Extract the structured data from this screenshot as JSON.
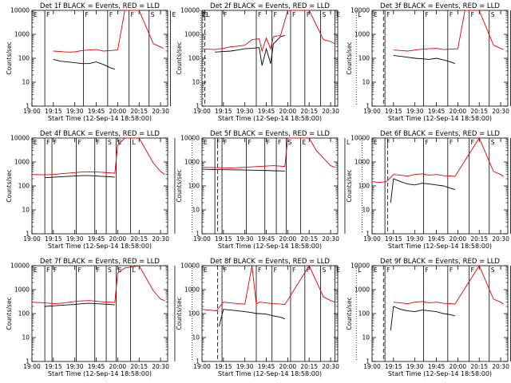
{
  "chart_data": [
    {
      "type": "line",
      "title": "Det 1f BLACK = Events, RED = LLD",
      "xlabel": "Start Time (12-Sep-14 18:58:00)",
      "ylabel": "Counts/sec",
      "yscale": "log",
      "ylim": [
        1,
        10000
      ],
      "xlim": [
        "19:00",
        "20:35"
      ],
      "x_ticks": [
        "19:00",
        "19:15",
        "19:30",
        "19:45",
        "20:00",
        "20:15",
        "20:30"
      ],
      "y_ticks": [
        "1",
        "10",
        "100",
        "1000",
        "10000"
      ],
      "region_labels": [
        "E",
        "F",
        "F",
        "F",
        "F",
        "S",
        "E",
        "E",
        "L"
      ],
      "series": [
        {
          "color": "#000000",
          "x": [
            "19:15",
            "19:20",
            "19:25",
            "19:30",
            "19:35",
            "19:40",
            "19:45",
            "19:50",
            "19:55",
            "19:58"
          ],
          "values": [
            90,
            75,
            70,
            65,
            60,
            60,
            70,
            55,
            40,
            35
          ]
        },
        {
          "color": "#e00000",
          "x": [
            "19:15",
            "19:20",
            "19:25",
            "19:30",
            "19:35",
            "19:40",
            "19:45",
            "19:50",
            "19:55",
            "20:00",
            "20:05",
            "20:15",
            "20:25",
            "20:30",
            "20:32"
          ],
          "values": [
            200,
            190,
            180,
            185,
            210,
            220,
            230,
            200,
            210,
            220,
            10000,
            10000,
            400,
            300,
            260
          ]
        }
      ]
    },
    {
      "type": "line",
      "title": "Det 2f BLACK = Events, RED = LLD",
      "xlabel": "Start Time (12-Sep-14 18:58:00)",
      "ylabel": "Counts/sec",
      "yscale": "log",
      "ylim": [
        1,
        10000
      ],
      "xlim": [
        "19:00",
        "20:35"
      ],
      "x_ticks": [
        "19:00",
        "19:15",
        "19:30",
        "19:45",
        "20:00",
        "20:15",
        "20:30"
      ],
      "y_ticks": [
        "1",
        "10",
        "100",
        "1000",
        "10000"
      ],
      "region_labels": [
        "E",
        "F",
        "F",
        "F",
        "F",
        "F",
        "S",
        "E",
        "L"
      ],
      "series": [
        {
          "color": "#000000",
          "x": [
            "19:09",
            "19:15",
            "19:20",
            "19:25",
            "19:30",
            "19:35",
            "19:40",
            "19:42",
            "19:45",
            "19:48",
            "19:50",
            "19:55",
            "19:58"
          ],
          "values": [
            180,
            190,
            200,
            220,
            250,
            260,
            280,
            50,
            250,
            60,
            400,
            800,
            900
          ]
        },
        {
          "color": "#e00000",
          "x": [
            "19:00",
            "19:09",
            "19:15",
            "19:20",
            "19:25",
            "19:30",
            "19:35",
            "19:40",
            "19:42",
            "19:45",
            "19:48",
            "19:50",
            "19:55",
            "20:00",
            "20:15",
            "20:25",
            "20:30",
            "20:33"
          ],
          "values": [
            250,
            230,
            260,
            300,
            320,
            350,
            600,
            650,
            200,
            700,
            250,
            800,
            900,
            10000,
            10000,
            600,
            500,
            400
          ]
        }
      ]
    },
    {
      "type": "line",
      "title": "Det 3f BLACK = Events, RED = LLD",
      "xlabel": "Start Time (12-Sep-14 18:58:00)",
      "ylabel": "Counts/sec",
      "yscale": "log",
      "ylim": [
        1,
        10000
      ],
      "xlim": [
        "19:00",
        "20:35"
      ],
      "x_ticks": [
        "19:00",
        "19:15",
        "19:30",
        "19:45",
        "20:00",
        "20:15",
        "20:30"
      ],
      "y_ticks": [
        "1",
        "10",
        "100",
        "1000",
        "10000"
      ],
      "region_labels": [
        "E",
        "F",
        "F",
        "F",
        "F",
        "S",
        "E",
        "E",
        "L"
      ],
      "series": [
        {
          "color": "#000000",
          "x": [
            "19:15",
            "19:20",
            "19:25",
            "19:30",
            "19:35",
            "19:40",
            "19:45",
            "19:50",
            "19:55",
            "19:58"
          ],
          "values": [
            130,
            120,
            110,
            100,
            95,
            90,
            100,
            85,
            70,
            60
          ]
        },
        {
          "color": "#e00000",
          "x": [
            "19:15",
            "19:20",
            "19:25",
            "19:30",
            "19:35",
            "19:40",
            "19:45",
            "19:50",
            "19:55",
            "20:00",
            "20:05",
            "20:15",
            "20:25",
            "20:30",
            "20:32"
          ],
          "values": [
            220,
            210,
            200,
            220,
            240,
            250,
            260,
            230,
            240,
            250,
            10000,
            10000,
            350,
            260,
            230
          ]
        }
      ]
    },
    {
      "type": "line",
      "title": "Det 4f BLACK = Events, RED = LLD",
      "xlabel": "Start Time (12-Sep-14 18:58:00)",
      "ylabel": "Counts/sec",
      "yscale": "log",
      "ylim": [
        1,
        10000
      ],
      "xlim": [
        "19:00",
        "20:35"
      ],
      "x_ticks": [
        "19:00",
        "19:15",
        "19:30",
        "19:45",
        "20:00",
        "20:15",
        "20:30"
      ],
      "y_ticks": [
        "1",
        "10",
        "100",
        "1000",
        "10000"
      ],
      "region_labels": [
        "E",
        "F",
        "F",
        "F",
        "F",
        "S",
        "E",
        "L"
      ],
      "series": [
        {
          "color": "#000000",
          "x": [
            "19:09",
            "19:15",
            "19:20",
            "19:25",
            "19:30",
            "19:35",
            "19:40",
            "19:45",
            "19:50",
            "19:55",
            "19:58"
          ],
          "values": [
            220,
            230,
            240,
            250,
            260,
            270,
            270,
            260,
            250,
            240,
            230
          ]
        },
        {
          "color": "#e00000",
          "x": [
            "19:00",
            "19:09",
            "19:15",
            "19:20",
            "19:25",
            "19:30",
            "19:35",
            "19:40",
            "19:45",
            "19:50",
            "19:55",
            "19:58",
            "20:00",
            "20:05",
            "20:15",
            "20:25",
            "20:30",
            "20:33"
          ],
          "values": [
            300,
            290,
            300,
            320,
            340,
            360,
            380,
            390,
            380,
            370,
            350,
            340,
            5000,
            10000,
            10000,
            900,
            400,
            300
          ]
        }
      ]
    },
    {
      "type": "line",
      "title": "Det 5f BLACK = Events, RED = LLD",
      "xlabel": "Start Time (12-Sep-14 18:58:00)",
      "ylabel": "Counts/sec",
      "yscale": "log",
      "ylim": [
        1,
        10000
      ],
      "xlim": [
        "19:00",
        "20:35"
      ],
      "x_ticks": [
        "19:00",
        "19:15",
        "19:30",
        "19:45",
        "20:00",
        "20:15",
        "20:30"
      ],
      "y_ticks": [
        "1",
        "10",
        "100",
        "1000",
        "10000"
      ],
      "region_labels": [
        "E",
        "F",
        "F",
        "F",
        "F",
        "F",
        "S",
        "E",
        "L"
      ],
      "series": [
        {
          "color": "#000000",
          "x": [
            "19:00",
            "19:10",
            "19:20",
            "19:30",
            "19:40",
            "19:50",
            "19:58"
          ],
          "values": [
            500,
            480,
            470,
            460,
            450,
            430,
            420
          ]
        },
        {
          "color": "#e00000",
          "x": [
            "19:00",
            "19:10",
            "19:20",
            "19:30",
            "19:40",
            "19:50",
            "19:58",
            "20:00",
            "20:15",
            "20:20",
            "20:30",
            "20:33"
          ],
          "values": [
            600,
            580,
            560,
            600,
            650,
            700,
            650,
            10000,
            10000,
            3000,
            700,
            600
          ]
        }
      ]
    },
    {
      "type": "line",
      "title": "Det 6f BLACK = Events, RED = LLD",
      "xlabel": "Start Time (12-Sep-14 18:58:00)",
      "ylabel": "Counts/sec",
      "yscale": "log",
      "ylim": [
        1,
        10000
      ],
      "xlim": [
        "19:00",
        "20:35"
      ],
      "x_ticks": [
        "19:00",
        "19:15",
        "19:30",
        "19:45",
        "20:00",
        "20:15",
        "20:30"
      ],
      "y_ticks": [
        "1",
        "10",
        "100",
        "1000",
        "10000"
      ],
      "region_labels": [
        "E",
        "F",
        "F",
        "F",
        "F",
        "S",
        "E",
        "E",
        "L"
      ],
      "series": [
        {
          "color": "#000000",
          "x": [
            "19:13",
            "19:15",
            "19:20",
            "19:25",
            "19:30",
            "19:35",
            "19:40",
            "19:45",
            "19:50",
            "19:55",
            "19:58"
          ],
          "values": [
            20,
            200,
            150,
            120,
            110,
            130,
            120,
            110,
            100,
            80,
            70
          ]
        },
        {
          "color": "#e00000",
          "x": [
            "19:00",
            "19:05",
            "19:10",
            "19:15",
            "19:20",
            "19:25",
            "19:30",
            "19:35",
            "19:40",
            "19:45",
            "19:50",
            "19:55",
            "19:58",
            "20:15",
            "20:25",
            "20:30",
            "20:32"
          ],
          "values": [
            150,
            140,
            150,
            300,
            280,
            260,
            300,
            320,
            280,
            300,
            270,
            260,
            250,
            10000,
            400,
            300,
            250
          ]
        }
      ]
    },
    {
      "type": "line",
      "title": "Det 7f BLACK = Events, RED = LLD",
      "xlabel": "Start Time (12-Sep-14 18:58:00)",
      "ylabel": "Counts/sec",
      "yscale": "log",
      "ylim": [
        1,
        10000
      ],
      "xlim": [
        "19:00",
        "20:35"
      ],
      "x_ticks": [
        "19:00",
        "19:15",
        "19:30",
        "19:45",
        "20:00",
        "20:15",
        "20:30"
      ],
      "y_ticks": [
        "1",
        "10",
        "100",
        "1000",
        "10000"
      ],
      "region_labels": [
        "E",
        "F",
        "F",
        "F",
        "F",
        "S",
        "E",
        "L"
      ],
      "series": [
        {
          "color": "#000000",
          "x": [
            "19:09",
            "19:15",
            "19:20",
            "19:25",
            "19:30",
            "19:35",
            "19:40",
            "19:45",
            "19:50",
            "19:55",
            "19:58"
          ],
          "values": [
            200,
            210,
            220,
            230,
            240,
            260,
            270,
            260,
            250,
            240,
            230
          ]
        },
        {
          "color": "#e00000",
          "x": [
            "19:00",
            "19:09",
            "19:15",
            "19:20",
            "19:25",
            "19:30",
            "19:35",
            "19:40",
            "19:45",
            "19:50",
            "19:55",
            "19:58",
            "20:00",
            "20:05",
            "20:15",
            "20:25",
            "20:30",
            "20:33"
          ],
          "values": [
            300,
            280,
            260,
            270,
            290,
            320,
            340,
            350,
            330,
            310,
            300,
            290,
            5000,
            8000,
            10000,
            900,
            400,
            350
          ]
        }
      ]
    },
    {
      "type": "line",
      "title": "Det 8f BLACK = Events, RED = LLD",
      "xlabel": "Start Time (12-Sep-14 18:58:00)",
      "ylabel": "Counts/sec",
      "yscale": "log",
      "ylim": [
        1,
        10000
      ],
      "xlim": [
        "19:00",
        "20:35"
      ],
      "x_ticks": [
        "19:00",
        "19:15",
        "19:30",
        "19:45",
        "20:00",
        "20:15",
        "20:30"
      ],
      "y_ticks": [
        "1",
        "10",
        "100",
        "1000",
        "10000"
      ],
      "region_labels": [
        "E",
        "F",
        "F",
        "F",
        "F",
        "F",
        "S",
        "E",
        "L"
      ],
      "series": [
        {
          "color": "#000000",
          "x": [
            "19:12",
            "19:15",
            "19:20",
            "19:25",
            "19:30",
            "19:35",
            "19:38",
            "19:40",
            "19:45",
            "19:50",
            "19:55",
            "19:58"
          ],
          "values": [
            30,
            150,
            140,
            130,
            120,
            110,
            100,
            100,
            95,
            80,
            70,
            60
          ]
        },
        {
          "color": "#e00000",
          "x": [
            "19:00",
            "19:05",
            "19:10",
            "19:15",
            "19:20",
            "19:25",
            "19:30",
            "19:35",
            "19:38",
            "19:40",
            "19:45",
            "19:50",
            "19:55",
            "19:58",
            "20:15",
            "20:25",
            "20:30",
            "20:33"
          ],
          "values": [
            150,
            140,
            130,
            300,
            280,
            260,
            250,
            10000,
            250,
            300,
            280,
            260,
            250,
            240,
            10000,
            500,
            350,
            300
          ]
        }
      ]
    },
    {
      "type": "line",
      "title": "Det 9f BLACK = Events, RED = LLD",
      "xlabel": "Start Time (12-Sep-14 18:58:00)",
      "ylabel": "Counts/sec",
      "yscale": "log",
      "ylim": [
        1,
        10000
      ],
      "xlim": [
        "19:00",
        "20:35"
      ],
      "x_ticks": [
        "19:00",
        "19:15",
        "19:30",
        "19:45",
        "20:00",
        "20:15",
        "20:30"
      ],
      "y_ticks": [
        "1",
        "10",
        "100",
        "1000",
        "10000"
      ],
      "region_labels": [
        "E",
        "F",
        "F",
        "F",
        "F",
        "S",
        "E",
        "E",
        "L"
      ],
      "series": [
        {
          "color": "#000000",
          "x": [
            "19:13",
            "19:15",
            "19:20",
            "19:25",
            "19:30",
            "19:35",
            "19:40",
            "19:45",
            "19:50",
            "19:55",
            "19:58"
          ],
          "values": [
            20,
            200,
            150,
            130,
            120,
            140,
            130,
            120,
            100,
            90,
            80
          ]
        },
        {
          "color": "#e00000",
          "x": [
            "19:15",
            "19:20",
            "19:25",
            "19:30",
            "19:35",
            "19:40",
            "19:45",
            "19:50",
            "19:55",
            "19:58",
            "20:15",
            "20:25",
            "20:30",
            "20:32"
          ],
          "values": [
            300,
            280,
            260,
            300,
            320,
            280,
            300,
            270,
            260,
            250,
            10000,
            400,
            300,
            250
          ]
        }
      ]
    }
  ]
}
